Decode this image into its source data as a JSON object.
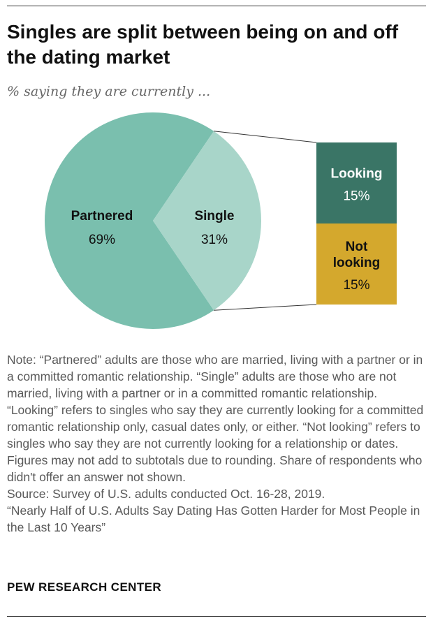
{
  "header": {
    "title": "Singles are split between being on and off the dating market",
    "subtitle": "% saying they are currently ..."
  },
  "chart_data": {
    "type": "pie",
    "pie": {
      "slices": [
        {
          "label": "Partnered",
          "value": 69,
          "value_label": "69%",
          "color": "#7abfae"
        },
        {
          "label": "Single",
          "value": 31,
          "value_label": "31%",
          "color": "#a8d5c9"
        }
      ]
    },
    "breakdown": {
      "of": "Single",
      "segments": [
        {
          "label_lines": [
            "Looking"
          ],
          "value": 15,
          "value_label": "15%",
          "color": "#3a7566",
          "text_color": "#ffffff"
        },
        {
          "label_lines": [
            "Not",
            "looking"
          ],
          "value": 15,
          "value_label": "15%",
          "color": "#d4a82d",
          "text_color": "#111111"
        }
      ]
    }
  },
  "notes": {
    "note": "Note: “Partnered” adults are those who are married, living with a partner or in a committed romantic relationship. “Single” adults are those who are not married, living with a partner or in a committed romantic relationship. “Looking” refers to singles who say they are currently looking for a committed romantic relationship only, casual dates only, or either. “Not looking” refers to singles who say they are not currently looking for a relationship or dates. Figures may not add to subtotals due to rounding. Share of respondents who didn't offer an answer not shown.",
    "source": "Source: Survey of U.S. adults conducted Oct. 16-28, 2019.",
    "report": "“Nearly Half of U.S. Adults Say Dating Has Gotten Harder for Most People in the Last 10 Years”"
  },
  "footer": {
    "brand": "PEW RESEARCH CENTER"
  }
}
